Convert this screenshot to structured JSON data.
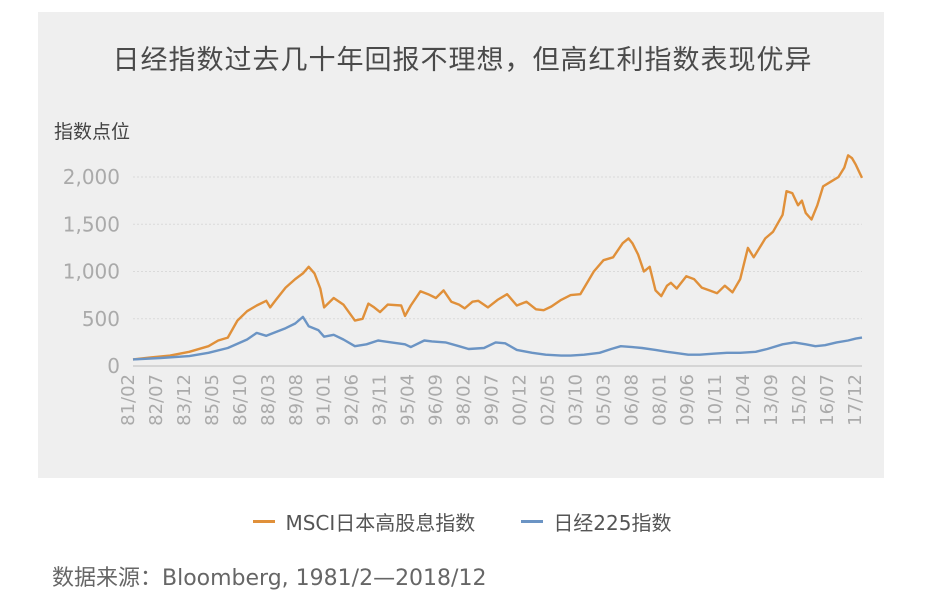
{
  "chart_data": {
    "type": "line",
    "title": "日经指数过去几十年回报不理想，但高红利指数表现优异",
    "ylabel": "指数点位",
    "ylim": [
      0,
      2300
    ],
    "yticks": [
      0,
      500,
      1000,
      1500,
      2000
    ],
    "ytick_labels": [
      "0",
      "500",
      "1,000",
      "1,500",
      "2,000"
    ],
    "xtick_labels": [
      "81/02",
      "82/07",
      "83/12",
      "85/05",
      "86/10",
      "88/03",
      "89/08",
      "91/01",
      "92/06",
      "93/11",
      "95/04",
      "96/09",
      "98/02",
      "99/07",
      "00/12",
      "02/05",
      "03/10",
      "05/03",
      "06/08",
      "08/01",
      "09/06",
      "10/11",
      "12/04",
      "13/09",
      "15/02",
      "16/07",
      "17/12"
    ],
    "x_range": [
      1981.08,
      2018.92
    ],
    "grid": true,
    "legend_position": "bottom",
    "series": [
      {
        "name": "MSCI日本高股息指数",
        "color": "#e0903a",
        "x": [
          1981.08,
          1982.0,
          1983.0,
          1984.0,
          1985.0,
          1985.5,
          1986.0,
          1986.5,
          1987.0,
          1987.5,
          1988.0,
          1988.2,
          1988.5,
          1989.0,
          1989.5,
          1989.9,
          1990.2,
          1990.5,
          1990.8,
          1991.0,
          1991.5,
          1992.0,
          1992.6,
          1993.0,
          1993.3,
          1993.6,
          1993.9,
          1994.3,
          1995.0,
          1995.2,
          1995.5,
          1996.0,
          1996.4,
          1996.8,
          1997.2,
          1997.6,
          1998.0,
          1998.3,
          1998.7,
          1999.0,
          1999.5,
          2000.0,
          2000.5,
          2001.0,
          2001.5,
          2002.0,
          2002.4,
          2002.8,
          2003.3,
          2003.8,
          2004.3,
          2005.0,
          2005.5,
          2006.0,
          2006.5,
          2006.8,
          2007.0,
          2007.3,
          2007.6,
          2007.9,
          2008.2,
          2008.5,
          2008.8,
          2009.0,
          2009.3,
          2009.8,
          2010.2,
          2010.6,
          2011.0,
          2011.4,
          2011.8,
          2012.2,
          2012.6,
          2013.0,
          2013.3,
          2013.6,
          2013.9,
          2014.3,
          2014.8,
          2015.0,
          2015.3,
          2015.6,
          2015.8,
          2016.0,
          2016.3,
          2016.6,
          2016.9,
          2017.3,
          2017.7,
          2018.0,
          2018.2,
          2018.4,
          2018.6,
          2018.92
        ],
        "y": [
          70,
          90,
          110,
          150,
          210,
          270,
          300,
          480,
          580,
          640,
          690,
          620,
          700,
          830,
          920,
          980,
          1050,
          980,
          820,
          620,
          720,
          650,
          480,
          500,
          660,
          620,
          570,
          650,
          640,
          530,
          640,
          790,
          760,
          720,
          800,
          680,
          650,
          610,
          680,
          690,
          620,
          700,
          760,
          640,
          680,
          600,
          590,
          630,
          700,
          750,
          760,
          1000,
          1120,
          1150,
          1300,
          1350,
          1300,
          1180,
          1000,
          1050,
          800,
          740,
          850,
          880,
          820,
          950,
          920,
          830,
          800,
          770,
          850,
          780,
          920,
          1250,
          1150,
          1250,
          1350,
          1420,
          1600,
          1850,
          1830,
          1700,
          1750,
          1620,
          1550,
          1700,
          1900,
          1950,
          2000,
          2100,
          2230,
          2200,
          2130,
          1990
        ]
      },
      {
        "name": "日经225指数",
        "color": "#6b94c4",
        "x": [
          1981.08,
          1982.5,
          1984.0,
          1985.0,
          1986.0,
          1987.0,
          1987.5,
          1988.0,
          1988.5,
          1989.0,
          1989.5,
          1989.9,
          1990.2,
          1990.7,
          1991.0,
          1991.5,
          1992.0,
          1992.6,
          1993.2,
          1993.8,
          1994.5,
          1995.2,
          1995.5,
          1996.2,
          1996.6,
          1997.3,
          1998.0,
          1998.5,
          1999.3,
          1999.9,
          2000.4,
          2001.0,
          2001.8,
          2002.5,
          2003.3,
          2003.8,
          2004.5,
          2005.3,
          2005.9,
          2006.4,
          2007.0,
          2007.5,
          2008.2,
          2008.8,
          2009.2,
          2009.9,
          2010.5,
          2011.2,
          2011.9,
          2012.6,
          2013.4,
          2014.0,
          2014.8,
          2015.4,
          2016.0,
          2016.5,
          2017.0,
          2017.6,
          2018.2,
          2018.6,
          2018.92
        ],
        "y": [
          70,
          85,
          105,
          140,
          190,
          280,
          350,
          320,
          360,
          400,
          450,
          520,
          420,
          380,
          310,
          330,
          280,
          210,
          230,
          270,
          250,
          230,
          200,
          270,
          260,
          250,
          210,
          180,
          190,
          250,
          240,
          170,
          140,
          120,
          110,
          110,
          120,
          140,
          180,
          210,
          200,
          190,
          170,
          150,
          140,
          120,
          120,
          130,
          140,
          140,
          150,
          180,
          230,
          250,
          230,
          210,
          220,
          250,
          270,
          290,
          300
        ]
      }
    ]
  },
  "legend": {
    "item1": "MSCI日本高股息指数",
    "item2": "日经225指数"
  },
  "source": "数据来源：Bloomberg, 1981/2—2018/12"
}
